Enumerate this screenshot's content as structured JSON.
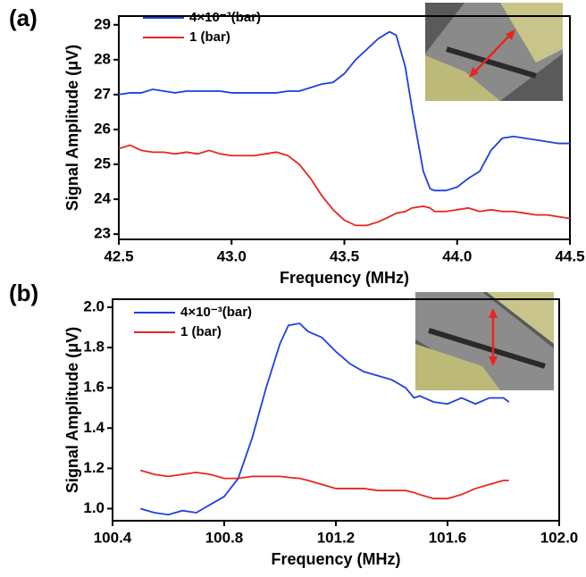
{
  "chart_data": [
    {
      "type": "line",
      "panel_label": "(a)",
      "xlabel": "Frequency (MHz)",
      "ylabel": "Signal Amplitude (μV)",
      "xlim": [
        42.5,
        44.5
      ],
      "xticks": [
        42.5,
        {
          "value": 43,
          "label": "43.0"
        },
        43.5,
        {
          "value": 44,
          "label": "44.0"
        },
        44.5
      ],
      "ylim": [
        22.85,
        29.25
      ],
      "yticks": [
        23,
        24,
        25,
        26,
        27,
        28,
        29
      ],
      "x": [
        42.5,
        42.55,
        42.6,
        42.65,
        42.7,
        42.75,
        42.8,
        42.85,
        42.9,
        42.95,
        43.0,
        43.05,
        43.1,
        43.15,
        43.2,
        43.25,
        43.3,
        43.35,
        43.4,
        43.45,
        43.5,
        43.55,
        43.6,
        43.65,
        43.7,
        43.73,
        43.77,
        43.8,
        43.85,
        43.88,
        43.9,
        43.95,
        44.0,
        44.05,
        44.1,
        44.15,
        44.2,
        44.25,
        44.3,
        44.35,
        44.4,
        44.45,
        44.5
      ],
      "series": [
        {
          "name": "4×10⁻³(bar)",
          "color": "#1f3fe0",
          "values": [
            27.0,
            27.05,
            27.05,
            27.15,
            27.1,
            27.05,
            27.1,
            27.1,
            27.1,
            27.1,
            27.05,
            27.05,
            27.05,
            27.05,
            27.05,
            27.1,
            27.1,
            27.2,
            27.3,
            27.35,
            27.6,
            28.0,
            28.3,
            28.6,
            28.8,
            28.7,
            27.8,
            26.6,
            24.8,
            24.3,
            24.25,
            24.25,
            24.35,
            24.6,
            24.8,
            25.4,
            25.75,
            25.8,
            25.75,
            25.7,
            25.65,
            25.6,
            25.6
          ]
        },
        {
          "name": "1  (bar)",
          "color": "#e8261e",
          "values": [
            25.45,
            25.55,
            25.4,
            25.35,
            25.35,
            25.3,
            25.35,
            25.3,
            25.4,
            25.3,
            25.25,
            25.25,
            25.25,
            25.3,
            25.35,
            25.25,
            25.0,
            24.6,
            24.1,
            23.7,
            23.4,
            23.25,
            23.25,
            23.35,
            23.5,
            23.6,
            23.65,
            23.75,
            23.8,
            23.75,
            23.65,
            23.65,
            23.7,
            23.75,
            23.65,
            23.7,
            23.65,
            23.65,
            23.6,
            23.55,
            23.55,
            23.5,
            23.45
          ]
        }
      ]
    },
    {
      "type": "line",
      "panel_label": "(b)",
      "xlabel": "Frequency (MHz)",
      "ylabel": "Signal Amplitude (μV)",
      "xlim": [
        100.4,
        102.0
      ],
      "xticks": [
        100.4,
        100.8,
        101.2,
        101.6,
        {
          "value": 102,
          "label": "102.0"
        }
      ],
      "ylim": [
        0.94,
        2.04
      ],
      "yticks": [
        {
          "value": 1,
          "label": "1.0"
        },
        1.2,
        1.4,
        1.6,
        1.8,
        {
          "value": 2,
          "label": "2.0"
        }
      ],
      "x": [
        100.5,
        100.55,
        100.6,
        100.65,
        100.7,
        100.75,
        100.8,
        100.85,
        100.9,
        100.95,
        101.0,
        101.03,
        101.07,
        101.1,
        101.15,
        101.2,
        101.25,
        101.3,
        101.35,
        101.4,
        101.45,
        101.48,
        101.5,
        101.55,
        101.6,
        101.65,
        101.7,
        101.75,
        101.8,
        101.82
      ],
      "series": [
        {
          "name": "4×10⁻³(bar)",
          "color": "#1f3fe0",
          "values": [
            1.0,
            0.98,
            0.97,
            0.99,
            0.98,
            1.02,
            1.06,
            1.15,
            1.35,
            1.6,
            1.82,
            1.91,
            1.92,
            1.88,
            1.85,
            1.78,
            1.72,
            1.68,
            1.66,
            1.64,
            1.6,
            1.55,
            1.56,
            1.53,
            1.52,
            1.55,
            1.52,
            1.55,
            1.55,
            1.53
          ]
        },
        {
          "name": "1  (bar)",
          "color": "#e8261e",
          "values": [
            1.19,
            1.17,
            1.16,
            1.17,
            1.18,
            1.17,
            1.15,
            1.15,
            1.16,
            1.16,
            1.16,
            1.155,
            1.15,
            1.14,
            1.12,
            1.1,
            1.1,
            1.1,
            1.09,
            1.09,
            1.09,
            1.08,
            1.07,
            1.05,
            1.05,
            1.07,
            1.1,
            1.12,
            1.14,
            1.14
          ]
        }
      ]
    }
  ]
}
